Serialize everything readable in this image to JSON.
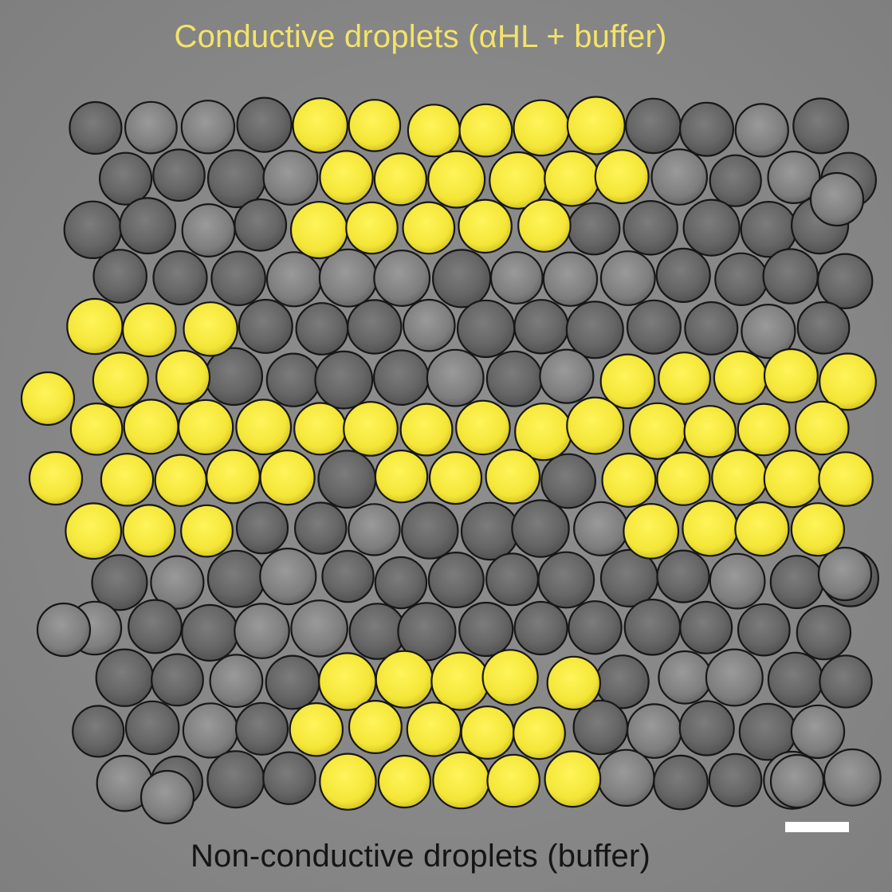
{
  "labels": {
    "conductive": "Conductive droplets (αHL + buffer)",
    "non_conductive": "Non-conductive droplets (buffer)"
  },
  "colors": {
    "background": "#8a8a8a",
    "conductive_droplet": "#f6ea3a",
    "non_conductive_droplet": "#6b6b6b",
    "droplet_outline": "#1a1a1a",
    "scale_bar": "#ffffff"
  },
  "droplet_arrangement": {
    "rows": 15,
    "columns": 14,
    "conductive_pattern": [
      "top-channel",
      "middle-horizontal-line",
      "bottom-channel",
      "left-cluster",
      "right-cluster"
    ]
  }
}
